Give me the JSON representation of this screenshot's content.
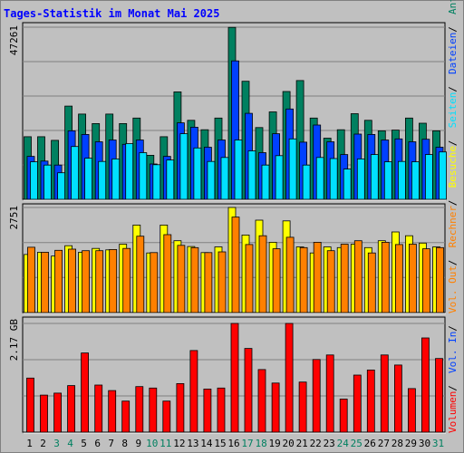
{
  "title": "Tages-Statistik im Monat Mai 2025",
  "colors": {
    "anfragen": "#008060",
    "dateien": "#0040ff",
    "seiten": "#00e0ff",
    "besuche": "#ffff00",
    "rechner": "#ff8000",
    "volumen": "#ff0000",
    "day_normal": "#000000",
    "day_weekend": "#008060"
  },
  "legend_right": [
    {
      "text": "Anfragen",
      "color": "#008060"
    },
    {
      "text": "Dateien",
      "color": "#0040ff"
    },
    {
      "text": "Seiten",
      "color": "#00e0ff"
    },
    {
      "text": "Besuche",
      "color": "#ffff00"
    },
    {
      "text": "Rechner",
      "color": "#ff8000"
    },
    {
      "text": "Vol. Out",
      "color": "#ff8000"
    },
    {
      "text": "Vol. In",
      "color": "#0040ff"
    },
    {
      "text": "Volumen",
      "color": "#ff0000"
    }
  ],
  "chart_data": [
    {
      "type": "bar",
      "panel": "hits",
      "ymax_label": "47261",
      "ymax": 47261,
      "categories": [
        "1",
        "2",
        "3",
        "4",
        "5",
        "6",
        "7",
        "8",
        "9",
        "10",
        "11",
        "12",
        "13",
        "14",
        "15",
        "16",
        "17",
        "18",
        "19",
        "20",
        "21",
        "22",
        "23",
        "24",
        "25",
        "26",
        "27",
        "28",
        "29",
        "30",
        "31"
      ],
      "weekend_days": [
        "3",
        "4",
        "10",
        "11",
        "17",
        "18",
        "24",
        "25",
        "31"
      ],
      "series": [
        {
          "name": "Anfragen",
          "values": [
            17200,
            17200,
            16200,
            25600,
            23400,
            20800,
            23400,
            20800,
            22300,
            12100,
            17200,
            29500,
            21700,
            19100,
            22300,
            47200,
            32400,
            19700,
            24000,
            29600,
            32600,
            22300,
            16800,
            19100,
            23500,
            21700,
            18800,
            19000,
            22300,
            20900,
            18800
          ]
        },
        {
          "name": "Dateien",
          "values": [
            11800,
            10500,
            9400,
            18800,
            17800,
            15800,
            16300,
            15100,
            16300,
            9700,
            11800,
            21000,
            19800,
            14300,
            16300,
            38000,
            23600,
            12800,
            18000,
            24800,
            15700,
            20400,
            15800,
            12300,
            17900,
            17800,
            16300,
            16600,
            15800,
            16500,
            14300
          ]
        },
        {
          "name": "Seiten",
          "values": [
            10300,
            9400,
            7300,
            14500,
            11300,
            10400,
            11100,
            15300,
            12800,
            9500,
            10800,
            18000,
            14100,
            10400,
            11500,
            16300,
            13300,
            9400,
            12000,
            16600,
            9400,
            11500,
            11200,
            8300,
            11100,
            12300,
            10300,
            10400,
            10300,
            12300,
            13000
          ]
        }
      ]
    },
    {
      "type": "bar",
      "panel": "visits",
      "ymax_label": "2751",
      "ymax": 2751,
      "categories": [
        "1",
        "2",
        "3",
        "4",
        "5",
        "6",
        "7",
        "8",
        "9",
        "10",
        "11",
        "12",
        "13",
        "14",
        "15",
        "16",
        "17",
        "18",
        "19",
        "20",
        "21",
        "22",
        "23",
        "24",
        "25",
        "26",
        "27",
        "28",
        "29",
        "30",
        "31"
      ],
      "series": [
        {
          "name": "Besuche",
          "values": [
            1520,
            1580,
            1480,
            1750,
            1580,
            1680,
            1640,
            1790,
            2290,
            1560,
            2290,
            1880,
            1730,
            1570,
            1720,
            2750,
            2030,
            2420,
            1840,
            2400,
            1720,
            1560,
            1720,
            1700,
            1790,
            1700,
            1880,
            2110,
            2010,
            1820,
            1720
          ]
        },
        {
          "name": "Rechner",
          "values": [
            1710,
            1580,
            1630,
            1660,
            1620,
            1620,
            1650,
            1680,
            2000,
            1570,
            2040,
            1760,
            1700,
            1570,
            1590,
            2500,
            1780,
            2010,
            1670,
            1970,
            1700,
            1840,
            1620,
            1790,
            1880,
            1560,
            1840,
            1780,
            1790,
            1670,
            1700
          ]
        }
      ]
    },
    {
      "type": "bar",
      "panel": "volume",
      "ymax_label": "2.17 GB",
      "ymax_gb": 2.17,
      "categories": [
        "1",
        "2",
        "3",
        "4",
        "5",
        "6",
        "7",
        "8",
        "9",
        "10",
        "11",
        "12",
        "13",
        "14",
        "15",
        "16",
        "17",
        "18",
        "19",
        "20",
        "21",
        "22",
        "23",
        "24",
        "25",
        "26",
        "27",
        "28",
        "29",
        "30",
        "31"
      ],
      "series": [
        {
          "name": "Volumen",
          "values": [
            1.08,
            0.74,
            0.78,
            0.93,
            1.58,
            0.94,
            0.83,
            0.62,
            0.91,
            0.88,
            0.62,
            0.97,
            1.63,
            0.86,
            0.88,
            2.17,
            1.67,
            1.25,
            0.98,
            2.17,
            1.0,
            1.45,
            1.54,
            0.66,
            1.14,
            1.24,
            1.54,
            1.34,
            0.87,
            1.88,
            1.47
          ]
        }
      ]
    }
  ]
}
